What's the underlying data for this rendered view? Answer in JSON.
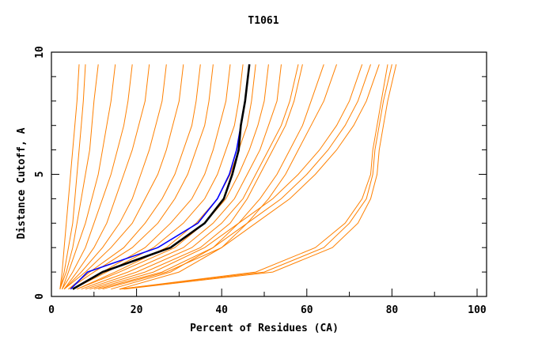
{
  "chart_data": {
    "type": "line",
    "title": "T1061",
    "xlabel": "Percent of Residues (CA)",
    "ylabel": "Distance Cutoff, A",
    "xlim": [
      0,
      100
    ],
    "ylim": [
      0,
      10
    ],
    "x_ticks": [
      "0",
      "20",
      "40",
      "60",
      "80",
      "100"
    ],
    "y_ticks": [
      "0",
      "5",
      "10"
    ],
    "grid": false,
    "legend": "none",
    "y_levels": [
      0.3,
      1,
      2,
      3,
      4,
      5,
      6,
      7,
      8,
      9.5
    ],
    "colors": {
      "models": "#ff8000",
      "highlight_black": "#000000",
      "highlight_blue": "#0000ff"
    },
    "model_curves_x": [
      [
        2,
        2.5,
        3,
        3.5,
        4,
        4.5,
        5,
        5.5,
        6,
        6.5
      ],
      [
        2,
        3,
        4,
        5,
        5.5,
        6,
        6.5,
        7,
        7.5,
        8
      ],
      [
        2,
        3.5,
        5,
        6,
        7,
        8,
        9,
        9.5,
        10,
        11
      ],
      [
        2.5,
        4,
        6,
        8,
        9.5,
        11,
        12,
        13,
        14,
        15
      ],
      [
        2.5,
        5,
        8,
        10,
        12,
        14,
        15.5,
        17,
        18,
        19
      ],
      [
        3,
        6,
        10,
        13,
        15,
        17,
        19,
        20.5,
        22,
        23
      ],
      [
        3,
        7,
        12,
        16,
        19,
        21,
        23,
        24.5,
        26,
        27
      ],
      [
        3,
        8,
        14,
        19,
        22,
        25,
        27,
        28.5,
        30,
        31
      ],
      [
        4,
        9,
        17,
        22,
        26,
        29,
        31,
        33,
        34,
        35
      ],
      [
        4,
        10,
        19,
        25,
        29,
        32,
        34,
        36,
        37,
        38
      ],
      [
        5,
        12,
        22,
        28,
        33,
        36,
        38,
        39.5,
        41,
        42
      ],
      [
        5,
        13,
        24,
        31,
        36,
        39,
        41,
        43,
        44,
        45
      ],
      [
        6,
        15,
        27,
        34,
        39,
        42,
        44,
        46,
        47,
        48
      ],
      [
        6,
        16,
        29,
        36,
        41,
        44,
        46.5,
        48.5,
        50,
        51
      ],
      [
        7,
        18,
        31,
        38,
        43,
        46,
        49,
        51,
        53,
        54
      ],
      [
        8,
        20,
        33,
        40,
        45,
        48,
        51,
        54,
        56,
        58
      ],
      [
        9,
        22,
        35,
        42,
        46,
        49,
        52,
        55,
        57,
        59
      ],
      [
        14,
        28,
        38,
        44,
        49,
        53,
        56,
        59,
        61,
        64
      ],
      [
        16,
        30,
        40,
        46,
        51,
        55,
        58,
        61,
        64,
        67
      ],
      [
        10,
        24,
        36,
        44,
        52,
        58,
        63,
        67,
        70,
        73
      ],
      [
        11,
        26,
        38,
        46,
        54,
        60,
        65,
        69,
        72,
        75
      ],
      [
        12,
        27,
        40,
        48,
        56,
        62,
        67,
        71,
        74,
        77
      ],
      [
        16,
        50,
        64,
        70,
        74,
        75.5,
        76,
        77,
        78,
        80
      ],
      [
        17,
        52,
        66,
        72,
        75,
        76.5,
        77,
        78,
        79,
        81
      ],
      [
        16,
        48,
        62,
        69,
        73,
        75,
        75.5,
        76.5,
        77.5,
        79
      ]
    ],
    "blue_curve_x": [
      4.5,
      8.5,
      25,
      34.4,
      39,
      41.8,
      43.5,
      44.5,
      45.5,
      46.5
    ],
    "black_curve_x": [
      5,
      12,
      28,
      36,
      40.5,
      42.5,
      44,
      44.5,
      45.5,
      46.5
    ]
  }
}
